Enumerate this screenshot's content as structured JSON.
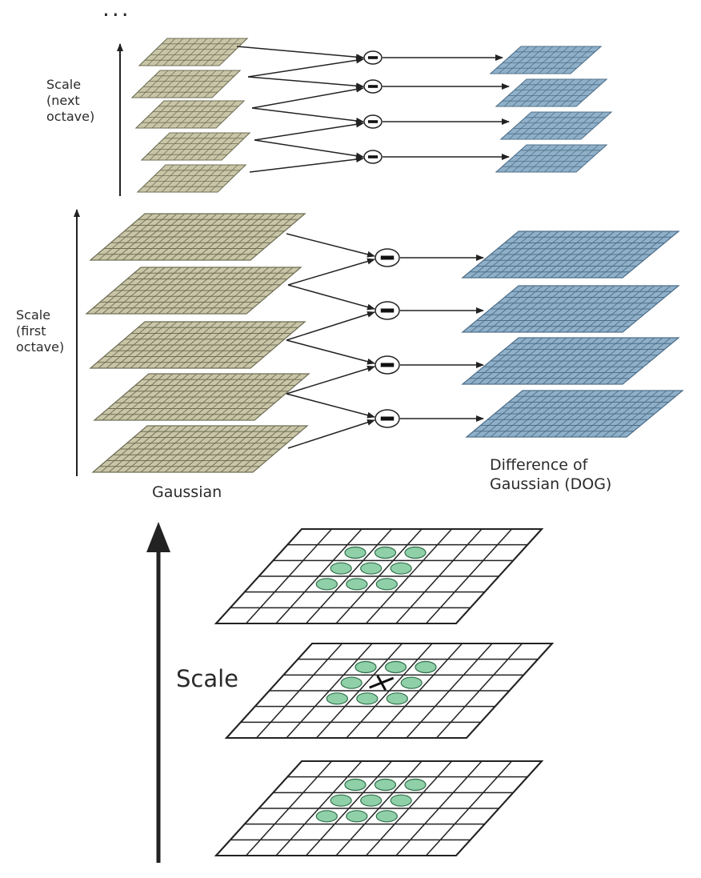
{
  "labels": {
    "ellipsis": "...",
    "scale_next_line1": "Scale",
    "scale_next_line2": "(next",
    "scale_next_line3": "octave)",
    "scale_first_line1": "Scale",
    "scale_first_line2": "(first",
    "scale_first_line3": "octave)",
    "gaussian": "Gaussian",
    "dog_line1": "Difference of",
    "dog_line2": "Gaussian (DOG)",
    "scale_bottom": "Scale"
  },
  "colors": {
    "gaussian_fill": "#c9c6a8",
    "gaussian_line": "#6f6e55",
    "dog_fill": "#8fb0c8",
    "dog_line": "#4f6f8a",
    "extrema_fill": "#8fd0a8",
    "extrema_stroke": "#2f6f4a",
    "arrow": "#222222"
  },
  "symbols": {
    "minus": "−"
  }
}
